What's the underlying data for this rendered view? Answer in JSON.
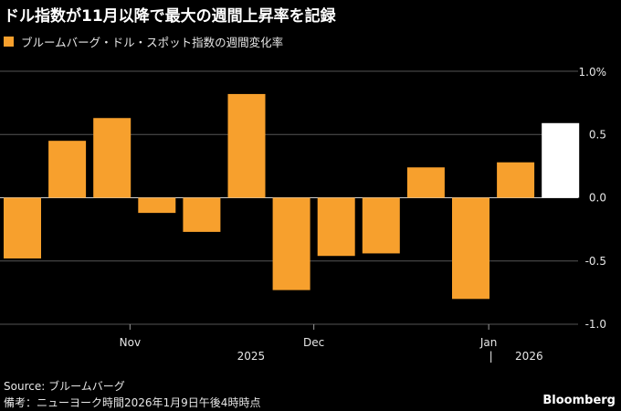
{
  "title": "ドル指数が11月以降で最大の週間上昇率を記録",
  "legend": {
    "label": "ブルームバーグ・ドル・スポット指数の週間変化率",
    "color": "#f7a02d"
  },
  "source": "Source: ブルームバーグ",
  "note": "備考：ニューヨーク時間2026年1月9日午後4時時点",
  "brand": "Bloomberg",
  "colors": {
    "bar": "#f7a02d",
    "highlight": "#ffffff",
    "grid": "#555555",
    "text": "#e6e6e6"
  },
  "chart_data": {
    "type": "bar",
    "title": "ドル指数が11月以降で最大の週間上昇率を記録",
    "series": [
      {
        "name": "ブルームバーグ・ドル・スポット指数の週間変化率",
        "values": [
          -0.48,
          0.45,
          0.63,
          -0.12,
          -0.27,
          0.82,
          -0.73,
          -0.46,
          -0.44,
          0.24,
          -0.8,
          0.28,
          0.59
        ]
      }
    ],
    "highlight_index": 12,
    "ylim": [
      -1.0,
      1.0
    ],
    "yticks": [
      {
        "value": 1.0,
        "label": "1.0%"
      },
      {
        "value": 0.5,
        "label": "0.5"
      },
      {
        "value": 0.0,
        "label": "0.0"
      },
      {
        "value": -0.5,
        "label": "-0.5"
      },
      {
        "value": -1.0,
        "label": "-1.0"
      }
    ],
    "xticks": [
      {
        "index": 2.4,
        "label": "Nov"
      },
      {
        "index": 6.5,
        "label": "Dec"
      },
      {
        "index": 10.4,
        "label": "Jan"
      }
    ],
    "year_labels": [
      {
        "index": 5.1,
        "label": "2025"
      },
      {
        "index": 11.3,
        "label": "2026"
      }
    ],
    "year_separator_index": 10.45,
    "year_separator_label": "|",
    "xlabel": "",
    "ylabel": ""
  }
}
